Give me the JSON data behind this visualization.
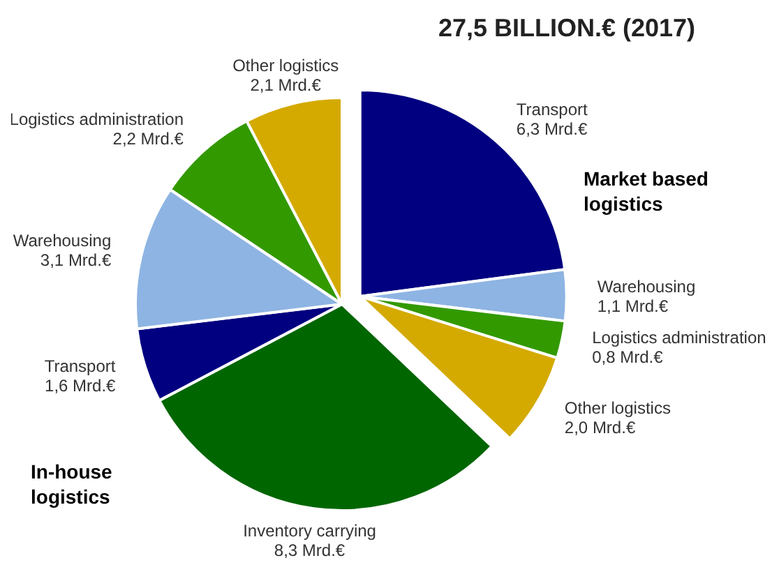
{
  "chart_data": {
    "type": "pie",
    "title": "27,5 BILLION.€ (2017)",
    "categories": [
      "Transport",
      "Warehousing",
      "Logistics administration",
      "Other logistics",
      "Inventory carrying",
      "Transport",
      "Warehousing",
      "Logistics administration",
      "Other logistics"
    ],
    "values": [
      6.3,
      1.1,
      0.8,
      2.0,
      8.3,
      1.6,
      3.1,
      2.2,
      2.1
    ],
    "colors": [
      "#000080",
      "#8eb4e3",
      "#339900",
      "#d4aa00",
      "#006600",
      "#000080",
      "#8eb4e3",
      "#339900",
      "#d4aa00"
    ],
    "value_labels": [
      "6,3 Mrd.€",
      "1,1 Mrd.€",
      "0,8 Mrd.€",
      "2,0 Mrd.€",
      "8,3 Mrd.€",
      "1,6 Mrd.€",
      "3,1 Mrd.€",
      "2,2 Mrd.€",
      "2,1 Mrd.€"
    ],
    "annotations": [
      "Market based logistics",
      "In-house logistics"
    ]
  }
}
